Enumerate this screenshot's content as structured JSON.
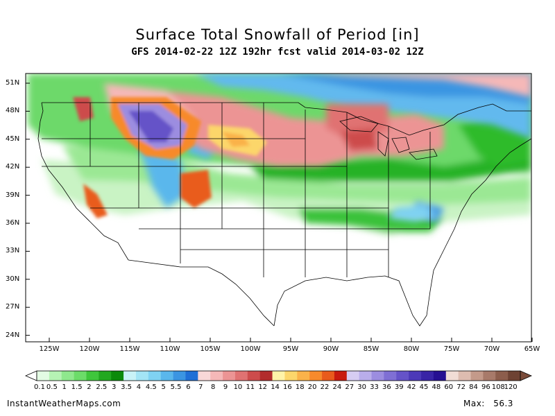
{
  "title": "Surface Total Snowfall of Period [in]",
  "subtitle": "GFS 2014-02-22 12Z 192hr fcst valid 2014-03-02 12Z",
  "footer": {
    "site": "InstantWeatherMaps.com",
    "max_label": "Max:",
    "max_value": "56.3"
  },
  "lat_labels": [
    "51N",
    "48N",
    "45N",
    "42N",
    "39N",
    "36N",
    "33N",
    "30N",
    "27N",
    "24N"
  ],
  "lon_labels": [
    "125W",
    "120W",
    "115W",
    "110W",
    "105W",
    "100W",
    "95W",
    "90W",
    "85W",
    "80W",
    "75W",
    "70W",
    "65W"
  ],
  "legend_labels": [
    "0.1",
    "0.5",
    "1",
    "1.5",
    "2",
    "2.5",
    "3",
    "3.5",
    "4",
    "4.5",
    "5",
    "5.5",
    "6",
    "7",
    "8",
    "9",
    "10",
    "11",
    "12",
    "14",
    "16",
    "18",
    "20",
    "22",
    "24",
    "27",
    "30",
    "33",
    "36",
    "39",
    "42",
    "45",
    "48",
    "60",
    "72",
    "84",
    "96",
    "108",
    "120"
  ],
  "legend_colors": [
    "#e3fbe3",
    "#b6f3b4",
    "#8fe88d",
    "#6cdc69",
    "#3fc63c",
    "#22a820",
    "#0b8a0a",
    "#c9f2f7",
    "#a3e4f5",
    "#7fd2f2",
    "#5ab7ec",
    "#3b95e2",
    "#1f6fd6",
    "#f8d8d8",
    "#f5b8b8",
    "#ec9494",
    "#e07272",
    "#cd4c4c",
    "#b22c2c",
    "#fff3a8",
    "#fcd66b",
    "#fab24a",
    "#f78a2c",
    "#e95b1c",
    "#c81a0e",
    "#d6cdf2",
    "#b9adea",
    "#9c8de0",
    "#7f6fd4",
    "#6553c8",
    "#4c39b8",
    "#3924a6",
    "#260f92",
    "#f1ddd6",
    "#ddbcb0",
    "#c49a8a",
    "#a87a6a",
    "#8c5d4c",
    "#6e4233"
  ]
}
